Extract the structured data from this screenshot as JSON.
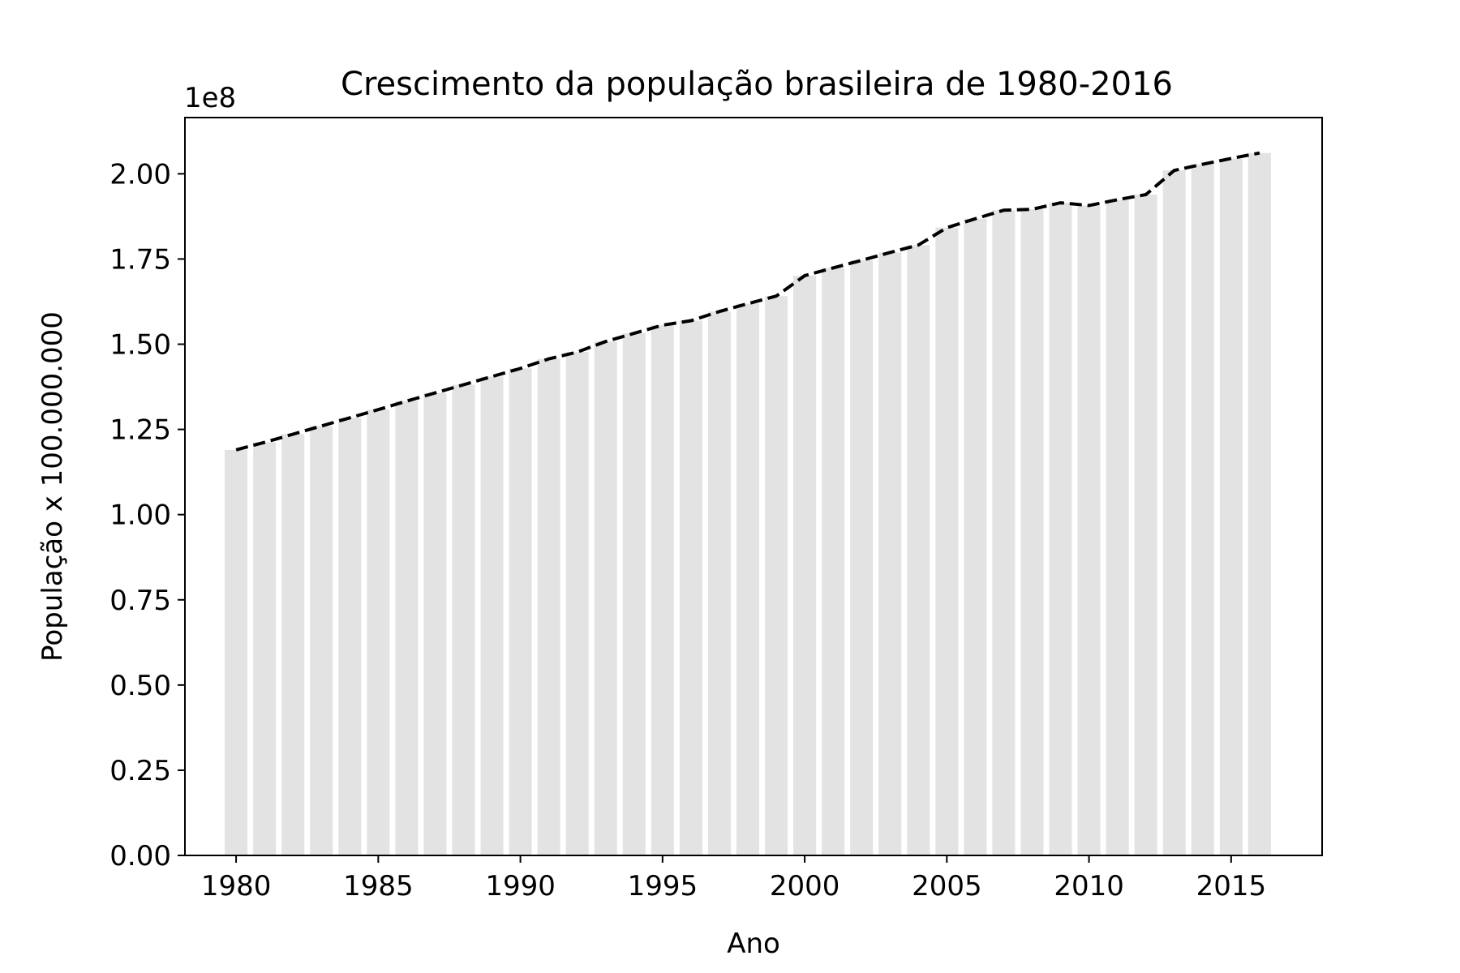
{
  "chart_data": {
    "type": "bar",
    "title": "Crescimento da população brasileira de 1980-2016",
    "xlabel": "Ano",
    "ylabel": "População x 100.000.000",
    "offset_text": "1e8",
    "x": [
      1980,
      1981,
      1982,
      1983,
      1984,
      1985,
      1986,
      1987,
      1988,
      1989,
      1990,
      1991,
      1992,
      1993,
      1994,
      1995,
      1996,
      1997,
      1998,
      1999,
      2000,
      2001,
      2002,
      2003,
      2004,
      2005,
      2006,
      2007,
      2008,
      2009,
      2010,
      2011,
      2012,
      2013,
      2014,
      2015,
      2016
    ],
    "values": [
      119000000,
      121200000,
      123600000,
      126000000,
      128400000,
      130800000,
      133300000,
      135700000,
      138100000,
      140500000,
      142900000,
      145700000,
      147700000,
      150800000,
      153200000,
      155600000,
      156900000,
      159600000,
      161900000,
      164100000,
      170100000,
      172400000,
      174600000,
      176900000,
      179100000,
      184200000,
      186800000,
      189300000,
      189600000,
      191500000,
      190700000,
      192400000,
      193900000,
      201000000,
      202800000,
      204500000,
      206100000
    ],
    "series": [
      {
        "type": "bar",
        "color": "#e3e3e3"
      },
      {
        "type": "line",
        "color": "#000000",
        "style": "dashed"
      }
    ],
    "xticks": [
      1980,
      1985,
      1990,
      1995,
      2000,
      2005,
      2010,
      2015
    ],
    "xtick_labels": [
      "1980",
      "1985",
      "1990",
      "1995",
      "2000",
      "2005",
      "2010",
      "2015"
    ],
    "yticks": [
      0,
      25000000,
      50000000,
      75000000,
      100000000,
      125000000,
      150000000,
      175000000,
      200000000
    ],
    "ytick_labels": [
      "0.00",
      "0.25",
      "0.50",
      "0.75",
      "1.00",
      "1.25",
      "1.50",
      "1.75",
      "2.00"
    ],
    "xlim": [
      1978.2,
      2018.2
    ],
    "ylim": [
      0,
      216500000
    ],
    "grid": false,
    "legend": "none"
  }
}
